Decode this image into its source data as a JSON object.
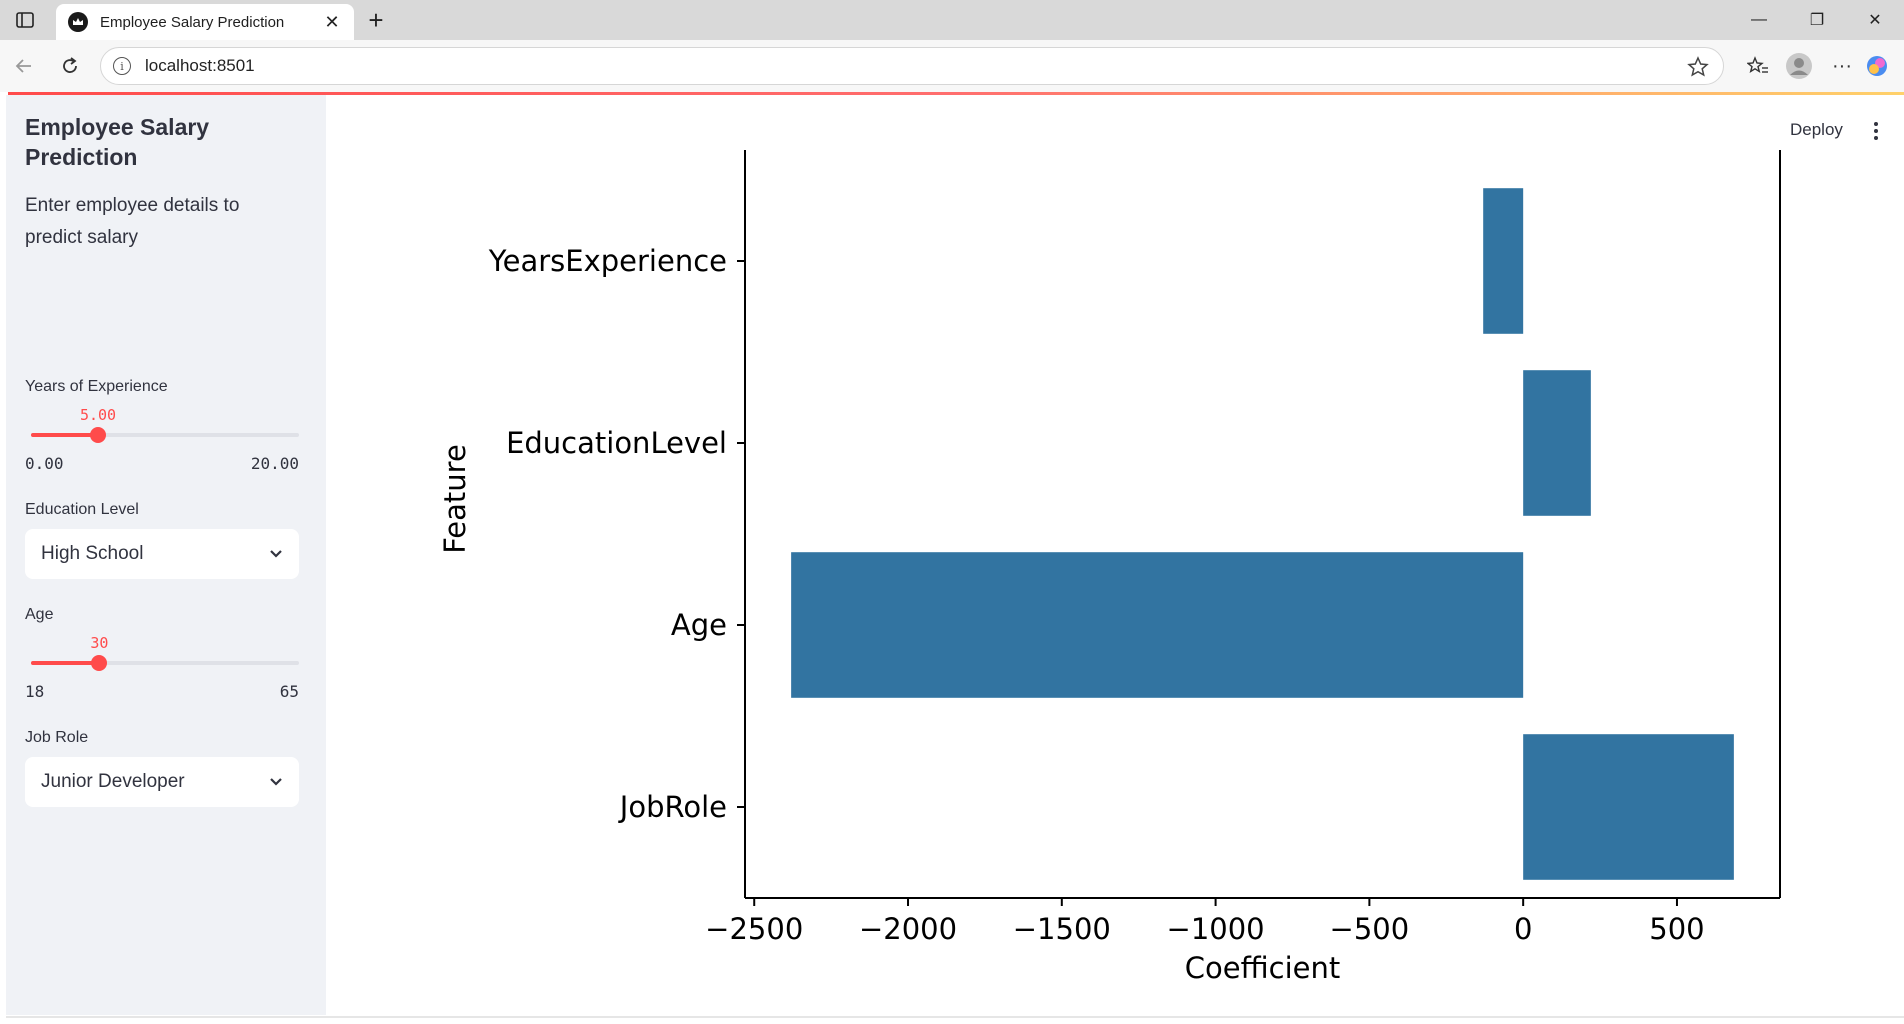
{
  "browser": {
    "tab_title": "Employee Salary Prediction",
    "url": "localhost:8501"
  },
  "app": {
    "deploy_label": "Deploy"
  },
  "sidebar": {
    "title": "Employee Salary Prediction",
    "description": "Enter employee details to predict salary",
    "experience": {
      "label": "Years of Experience",
      "value": 5.0,
      "value_text": "5.00",
      "min": 0,
      "max": 20,
      "min_text": "0.00",
      "max_text": "20.00"
    },
    "education": {
      "label": "Education Level",
      "value": "High School"
    },
    "age": {
      "label": "Age",
      "value": 30,
      "value_text": "30",
      "min": 18,
      "max": 65,
      "min_text": "18",
      "max_text": "65"
    },
    "job_role": {
      "label": "Job Role",
      "value": "Junior Developer"
    }
  },
  "colors": {
    "accent": "#ff4b4b",
    "bar": "#3274a1",
    "sidebar_bg": "#f0f2f6",
    "text": "#31333f"
  },
  "chart_data": {
    "type": "bar",
    "orientation": "horizontal",
    "categories": [
      "YearsExperience",
      "EducationLevel",
      "Age",
      "JobRole"
    ],
    "values": [
      -130,
      220,
      -2380,
      685
    ],
    "xlabel": "Coefficient",
    "ylabel": "Feature",
    "xlim": [
      -2530,
      835
    ],
    "xticks": [
      -2500,
      -2000,
      -1500,
      -1000,
      -500,
      0,
      500
    ],
    "xtick_labels": [
      "−2500",
      "−2000",
      "−1500",
      "−1000",
      "−500",
      "0",
      "500"
    ],
    "grid": false
  }
}
